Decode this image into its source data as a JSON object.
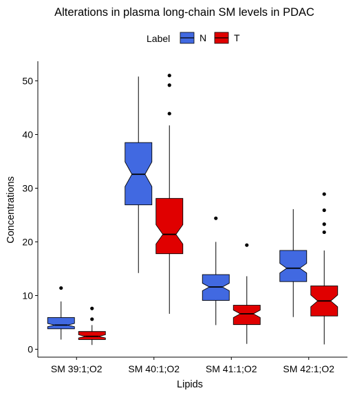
{
  "chart_data": {
    "type": "boxplot",
    "title": "Alterations in plasma long-chain SM levels in PDAC",
    "xlabel": "Lipids",
    "ylabel": "Concentrations",
    "ylim": [
      -1.5,
      53.5
    ],
    "y_ticks": [
      0,
      10,
      20,
      30,
      40,
      50
    ],
    "categories": [
      "SM 39:1;O2",
      "SM 40:1;O2",
      "SM 41:1;O2",
      "SM 42:1;O2"
    ],
    "grid": false,
    "notched": true,
    "legend": {
      "title": "Label",
      "position": "top",
      "entries": [
        {
          "key": "N",
          "label": "N",
          "color": "#4169E1"
        },
        {
          "key": "T",
          "label": "T",
          "color": "#E00000"
        }
      ]
    },
    "series": [
      {
        "name": "N",
        "color": "#4169E1",
        "boxes": [
          {
            "whisker_low": 1.8,
            "q1": 3.8,
            "median": 4.5,
            "q3": 5.9,
            "whisker_high": 8.9,
            "notch": [
              4.2,
              4.8
            ],
            "outliers": [
              11.4
            ]
          },
          {
            "whisker_low": 14.2,
            "q1": 26.9,
            "median": 32.6,
            "q3": 38.5,
            "whisker_high": 50.8,
            "notch": [
              30.3,
              34.9
            ],
            "outliers": []
          },
          {
            "whisker_low": 4.5,
            "q1": 9.1,
            "median": 11.6,
            "q3": 13.9,
            "whisker_high": 20.0,
            "notch": [
              10.9,
              12.3
            ],
            "outliers": [
              24.4
            ]
          },
          {
            "whisker_low": 6.0,
            "q1": 12.6,
            "median": 15.1,
            "q3": 18.4,
            "whisker_high": 26.1,
            "notch": [
              14.2,
              16.0
            ],
            "outliers": []
          }
        ]
      },
      {
        "name": "T",
        "color": "#E00000",
        "boxes": [
          {
            "whisker_low": 0.8,
            "q1": 1.8,
            "median": 2.4,
            "q3": 3.3,
            "whisker_high": 4.5,
            "notch": [
              2.1,
              2.7
            ],
            "outliers": [
              5.6,
              7.6
            ]
          },
          {
            "whisker_low": 6.6,
            "q1": 17.8,
            "median": 21.4,
            "q3": 28.1,
            "whisker_high": 41.7,
            "notch": [
              19.6,
              23.2
            ],
            "outliers": [
              43.9,
              49.2,
              51.0
            ]
          },
          {
            "whisker_low": 1.0,
            "q1": 4.6,
            "median": 6.6,
            "q3": 8.2,
            "whisker_high": 13.6,
            "notch": [
              5.9,
              7.3
            ],
            "outliers": [
              19.4
            ]
          },
          {
            "whisker_low": 0.9,
            "q1": 6.2,
            "median": 9.0,
            "q3": 11.8,
            "whisker_high": 18.4,
            "notch": [
              7.9,
              10.1
            ],
            "outliers": [
              21.8,
              23.3,
              25.9,
              28.9
            ]
          }
        ]
      }
    ]
  }
}
